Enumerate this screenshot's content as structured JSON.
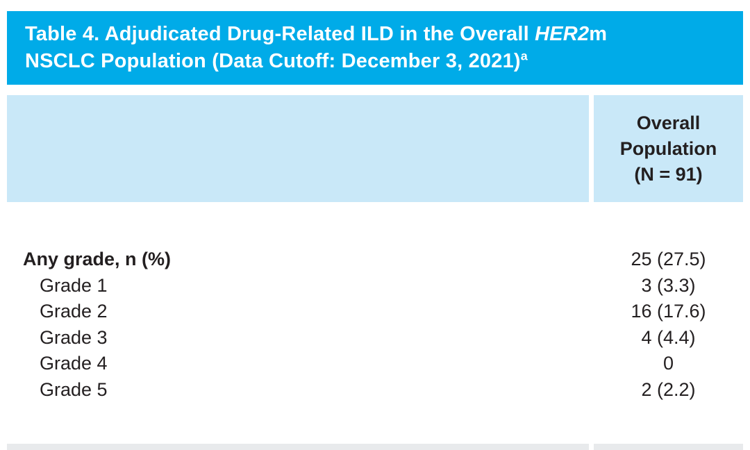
{
  "colors": {
    "title_band_background": "#00ABE8",
    "title_text": "#FFFFFF",
    "header_band_background": "#C9E8F8",
    "body_text": "#231F20",
    "bottom_band_background": "#E8EAEC",
    "divider": "#FFFFFF"
  },
  "table": {
    "title": {
      "line1_prefix": "Table 4. Adjudicated Drug-Related ILD in the Overall ",
      "line1_gene": "HER2",
      "line1_suffix": "m",
      "line2": "NSCLC Population (Data Cutoff: December 3, 2021)",
      "footnote_marker": "a"
    },
    "column_header": {
      "line1": "Overall",
      "line2": "Population",
      "line3": "(N = 91)"
    },
    "rows": [
      {
        "label": "Any grade, n (%)",
        "value": "25 (27.5)"
      },
      {
        "label": "Grade 1",
        "value": "3 (3.3)"
      },
      {
        "label": "Grade 2",
        "value": "16 (17.6)"
      },
      {
        "label": "Grade 3",
        "value": "4 (4.4)"
      },
      {
        "label": "Grade 4",
        "value": "0"
      },
      {
        "label": "Grade 5",
        "value": "2 (2.2)"
      }
    ]
  }
}
